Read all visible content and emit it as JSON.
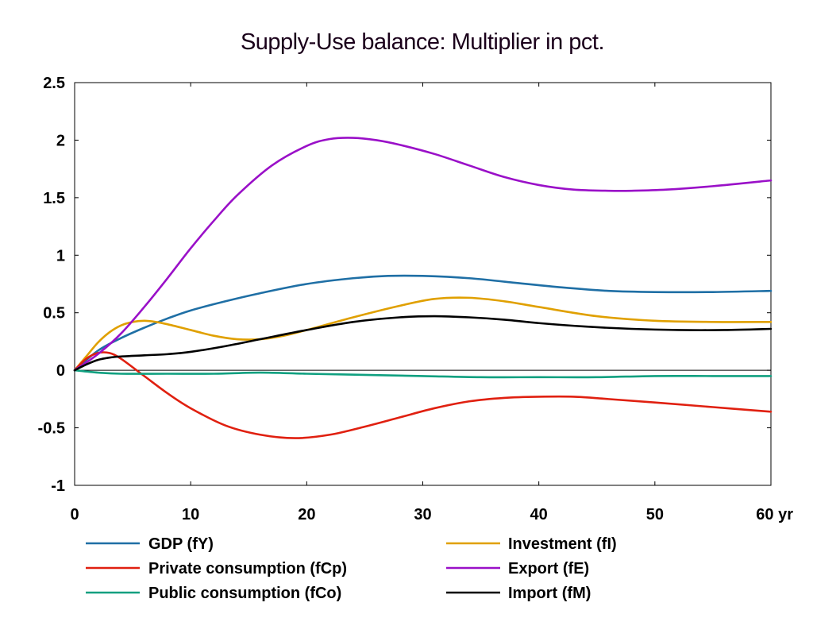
{
  "chart_data": {
    "type": "line",
    "title": "Supply-Use balance: Multiplier in pct.",
    "xlabel": "",
    "ylabel": "",
    "x_unit": "yr",
    "xlim": [
      0,
      60
    ],
    "ylim": [
      -1,
      2.5
    ],
    "x_ticks": [
      0,
      10,
      20,
      30,
      40,
      50,
      60
    ],
    "x_tick_labels": [
      "0",
      "10",
      "20",
      "30",
      "40",
      "50",
      "60 yr"
    ],
    "y_ticks": [
      -1,
      -0.5,
      0,
      0.5,
      1,
      1.5,
      2,
      2.5
    ],
    "y_tick_labels": [
      "-1",
      "-0.5",
      "0",
      "0.5",
      "1",
      "1.5",
      "2",
      "2.5"
    ],
    "grid": false,
    "zero_line": true,
    "legend_position": "bottom",
    "series": [
      {
        "name": "GDP (fY)",
        "color": "#1f6fa5",
        "x": [
          0,
          2,
          4,
          6,
          8,
          10,
          13,
          16,
          20,
          24,
          27,
          30,
          34,
          38,
          42,
          46,
          50,
          55,
          60
        ],
        "y": [
          0,
          0.17,
          0.28,
          0.37,
          0.45,
          0.52,
          0.6,
          0.67,
          0.75,
          0.8,
          0.82,
          0.82,
          0.8,
          0.76,
          0.72,
          0.69,
          0.68,
          0.68,
          0.69
        ]
      },
      {
        "name": "Investment (fI)",
        "color": "#e0a000",
        "x": [
          0,
          1,
          2,
          3,
          4,
          5,
          6,
          7,
          8,
          10,
          12,
          14,
          16,
          18,
          20,
          24,
          28,
          31,
          34,
          37,
          40,
          45,
          50,
          55,
          60
        ],
        "y": [
          0,
          0.12,
          0.24,
          0.33,
          0.39,
          0.42,
          0.43,
          0.42,
          0.4,
          0.35,
          0.3,
          0.27,
          0.27,
          0.3,
          0.35,
          0.46,
          0.56,
          0.62,
          0.63,
          0.6,
          0.55,
          0.47,
          0.43,
          0.42,
          0.42
        ]
      },
      {
        "name": "Private consumption (fCp)",
        "color": "#e02010",
        "x": [
          0,
          1,
          2,
          3,
          4,
          6,
          8,
          10,
          13,
          16,
          19,
          22,
          25,
          28,
          31,
          34,
          37,
          40,
          43,
          46,
          50,
          55,
          60
        ],
        "y": [
          0,
          0.1,
          0.15,
          0.15,
          0.1,
          -0.05,
          -0.2,
          -0.33,
          -0.48,
          -0.56,
          -0.59,
          -0.56,
          -0.49,
          -0.41,
          -0.33,
          -0.27,
          -0.24,
          -0.23,
          -0.23,
          -0.25,
          -0.28,
          -0.32,
          -0.36
        ]
      },
      {
        "name": "Export (fE)",
        "color": "#9a10c8",
        "x": [
          0,
          2,
          4,
          6,
          8,
          10,
          12,
          14,
          17,
          20,
          22,
          24,
          26,
          28,
          31,
          34,
          37,
          40,
          43,
          46,
          48,
          51,
          55,
          60
        ],
        "y": [
          0,
          0.14,
          0.32,
          0.55,
          0.8,
          1.06,
          1.3,
          1.52,
          1.78,
          1.95,
          2.01,
          2.02,
          2.0,
          1.96,
          1.88,
          1.78,
          1.68,
          1.61,
          1.57,
          1.56,
          1.56,
          1.57,
          1.6,
          1.65
        ]
      },
      {
        "name": "Public consumption (fCo)",
        "color": "#10a080",
        "x": [
          0,
          2,
          4,
          8,
          12,
          16,
          20,
          25,
          30,
          35,
          40,
          45,
          50,
          55,
          60
        ],
        "y": [
          0,
          -0.02,
          -0.03,
          -0.03,
          -0.03,
          -0.02,
          -0.03,
          -0.04,
          -0.05,
          -0.06,
          -0.06,
          -0.06,
          -0.05,
          -0.05,
          -0.05
        ]
      },
      {
        "name": "Import (fM)",
        "color": "#000000",
        "x": [
          0,
          1,
          2,
          3,
          4,
          6,
          8,
          10,
          13,
          16,
          20,
          24,
          28,
          31,
          34,
          37,
          40,
          44,
          48,
          52,
          56,
          60
        ],
        "y": [
          0,
          0.05,
          0.09,
          0.11,
          0.12,
          0.13,
          0.14,
          0.16,
          0.21,
          0.27,
          0.35,
          0.42,
          0.46,
          0.47,
          0.46,
          0.44,
          0.41,
          0.38,
          0.36,
          0.35,
          0.35,
          0.36
        ]
      }
    ],
    "legend_order": [
      [
        "GDP (fY)",
        "Investment (fI)"
      ],
      [
        "Private consumption (fCp)",
        "Export (fE)"
      ],
      [
        "Public consumption (fCo)",
        "Import (fM)"
      ]
    ]
  }
}
